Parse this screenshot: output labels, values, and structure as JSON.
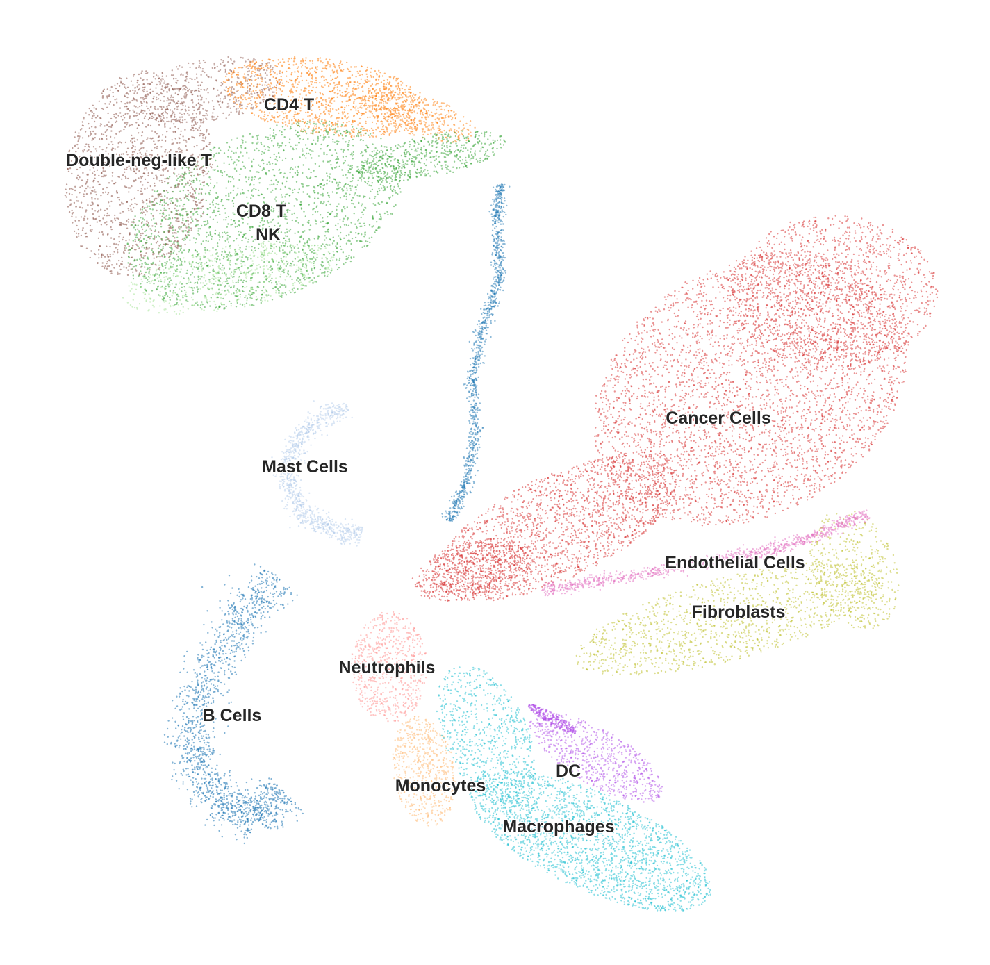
{
  "chart_data": {
    "type": "scatter",
    "title": "",
    "xlabel": "",
    "ylabel": "",
    "axes_visible": false,
    "grid": false,
    "legend": "none (labels placed on clusters)",
    "series": [
      {
        "name": "CD4 T",
        "color": "#ff7f0e"
      },
      {
        "name": "Double-neg-like T",
        "color": "#8c564b"
      },
      {
        "name": "CD8 T",
        "color": "#2ca02c"
      },
      {
        "name": "NK",
        "color": "#98df8a"
      },
      {
        "name": "Cancer Cells",
        "color": "#d62728"
      },
      {
        "name": "Mast Cells",
        "color": "#aec7e8"
      },
      {
        "name": "Endothelial Cells",
        "color": "#e377c2"
      },
      {
        "name": "Fibroblasts",
        "color": "#bcbd22"
      },
      {
        "name": "Neutrophils",
        "color": "#ff9896"
      },
      {
        "name": "B Cells",
        "color": "#1f77b4"
      },
      {
        "name": "DC",
        "color": "#b04ee8"
      },
      {
        "name": "Monocytes",
        "color": "#ffbb78"
      },
      {
        "name": "Macrophages",
        "color": "#17becf"
      }
    ]
  }
}
